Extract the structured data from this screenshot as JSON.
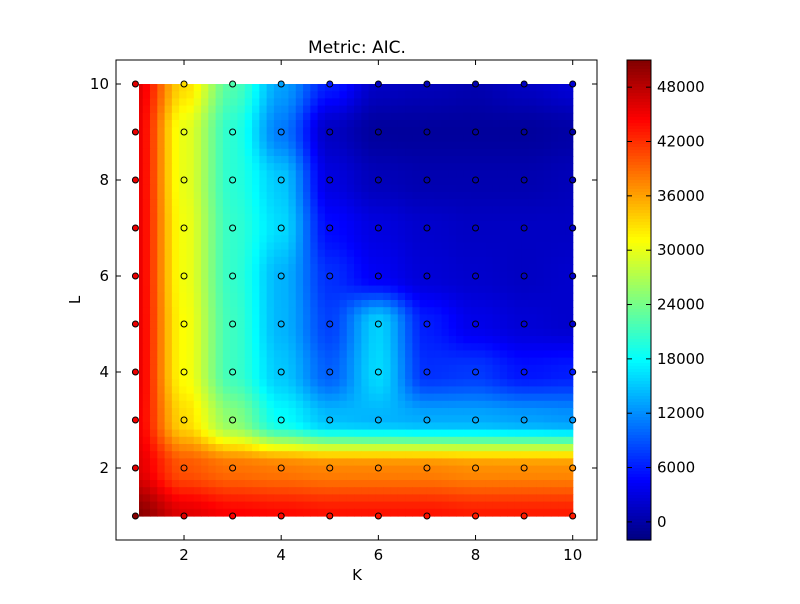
{
  "chart_data": {
    "type": "heatmap",
    "title": "Metric: AIC.",
    "xlabel": "K",
    "ylabel": "L",
    "xlim": [
      0.6,
      10.5
    ],
    "ylim": [
      0.5,
      10.5
    ],
    "x_ticks": [
      2,
      4,
      6,
      8,
      10
    ],
    "y_ticks": [
      2,
      4,
      6,
      8,
      10
    ],
    "x": [
      1,
      2,
      3,
      4,
      5,
      6,
      7,
      8,
      9,
      10
    ],
    "y": [
      1,
      2,
      3,
      4,
      5,
      6,
      7,
      8,
      9,
      10
    ],
    "z_rows_by_L": [
      [
        50500,
        46000,
        44500,
        44000,
        43500,
        43500,
        43500,
        43000,
        43000,
        43000
      ],
      [
        46000,
        40000,
        38500,
        38000,
        37500,
        37500,
        37500,
        37000,
        37000,
        37000
      ],
      [
        45000,
        33000,
        25000,
        18000,
        14500,
        14000,
        13500,
        13500,
        13000,
        12500
      ],
      [
        45500,
        31000,
        21000,
        15000,
        9500,
        16000,
        7000,
        7500,
        5500,
        6000
      ],
      [
        45500,
        31000,
        21000,
        14000,
        8000,
        15500,
        6000,
        3500,
        2500,
        2000
      ],
      [
        45500,
        30500,
        20500,
        14000,
        7000,
        4000,
        2500,
        2000,
        1500,
        2000
      ],
      [
        45500,
        30500,
        20500,
        16000,
        5000,
        3000,
        2000,
        1500,
        1500,
        1500
      ],
      [
        45500,
        30000,
        20000,
        15000,
        3000,
        1000,
        500,
        500,
        500,
        1000
      ],
      [
        45500,
        30000,
        20000,
        11000,
        1500,
        -500,
        -500,
        -500,
        -500,
        0
      ],
      [
        46000,
        33000,
        22000,
        13000,
        6000,
        1500,
        1000,
        500,
        1500,
        2500
      ]
    ],
    "colorbar": {
      "min": -2000,
      "max": 51000,
      "ticks": [
        0,
        6000,
        12000,
        18000,
        24000,
        30000,
        36000,
        42000,
        48000
      ],
      "colormap": "jet"
    },
    "markers": "black-edged circles at every (K, L) grid point, filled with the cell color"
  }
}
